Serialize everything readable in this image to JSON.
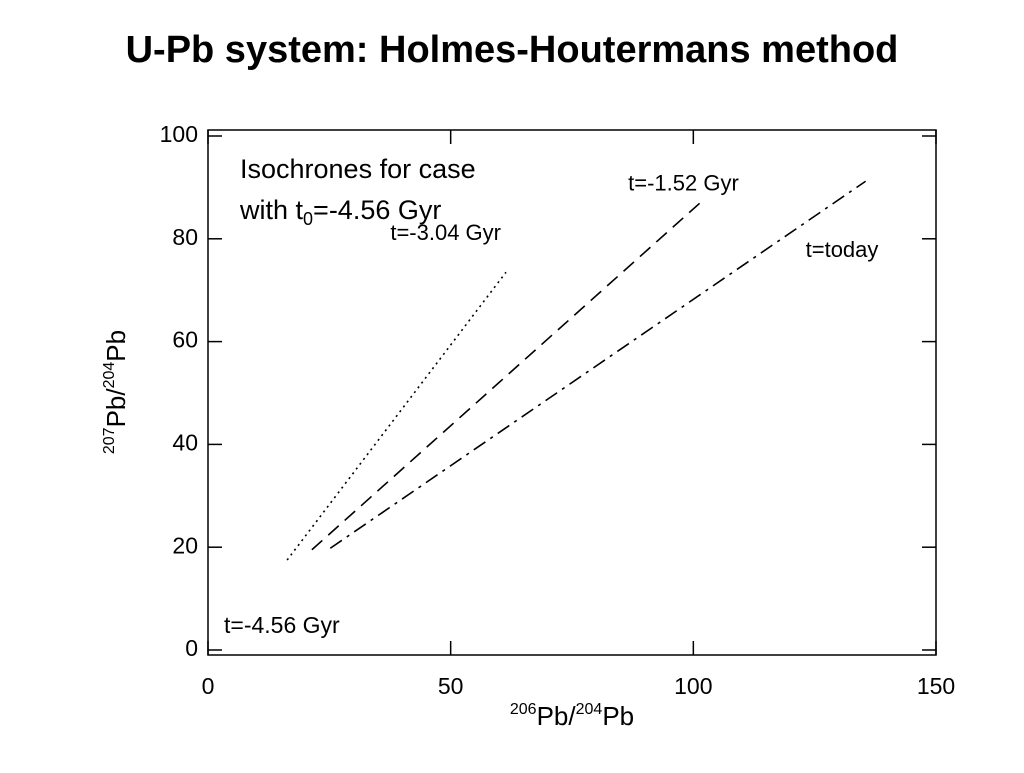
{
  "chart_data": {
    "type": "line",
    "title": "U-Pb system: Holmes-Houtermans method",
    "x_label": [
      "206",
      "Pb/",
      "204",
      "Pb"
    ],
    "y_label": [
      "207",
      "Pb/",
      "204",
      "Pb"
    ],
    "annotation": [
      "Isochrones for case",
      "with t",
      "0",
      "=-4.56 Gyr"
    ],
    "origin_label": "t=-4.56 Gyr",
    "series": [
      {
        "name": "t=-3.04 Gyr",
        "style": "dotted",
        "color": "#000000",
        "x": [
          16.3,
          61.4
        ],
        "values": [
          17.5,
          73.5
        ]
      },
      {
        "name": "t=-1.52 Gyr",
        "style": "dashed",
        "color": "#000000",
        "x": [
          21.4,
          101.4
        ],
        "values": [
          19.5,
          87
        ]
      },
      {
        "name": "t=today",
        "style": "dashdot",
        "color": "#000000",
        "x": [
          25.2,
          135.5
        ],
        "values": [
          19.8,
          91.2
        ]
      }
    ],
    "xlim": [
      0,
      150
    ],
    "xticks": [
      0,
      50,
      100,
      150
    ],
    "ylim": [
      0,
      100
    ],
    "yticks": [
      0,
      20,
      40,
      60,
      80,
      100
    ]
  }
}
